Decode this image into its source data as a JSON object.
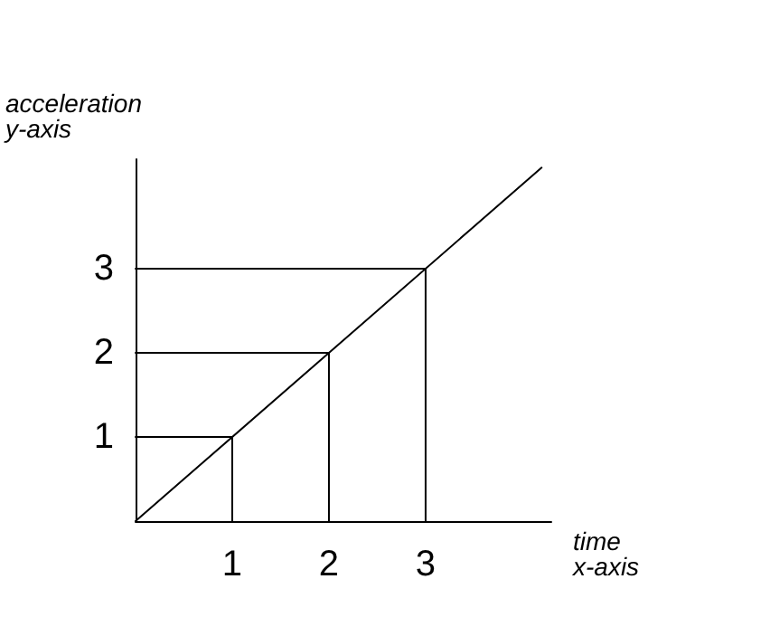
{
  "chart_data": {
    "type": "line",
    "xlabel": "time\nx-axis",
    "ylabel": "acceleration\ny-axis",
    "xlim": [
      0,
      4.3
    ],
    "ylim": [
      0,
      4.3
    ],
    "xticks": [
      1,
      2,
      3
    ],
    "yticks": [
      1,
      2,
      3
    ],
    "marker": "none",
    "line_style": "solid",
    "series": [
      {
        "color": "#000000",
        "x": [
          0,
          4.2
        ],
        "values": [
          0,
          4.2
        ]
      },
      {
        "color": "#000000",
        "x": [
          0,
          1,
          1
        ],
        "values": [
          1,
          1,
          0
        ]
      },
      {
        "color": "#000000",
        "x": [
          0,
          2,
          2
        ],
        "values": [
          2,
          2,
          0
        ]
      },
      {
        "color": "#000000",
        "x": [
          0,
          3,
          3
        ],
        "values": [
          3,
          3,
          0
        ]
      }
    ]
  }
}
